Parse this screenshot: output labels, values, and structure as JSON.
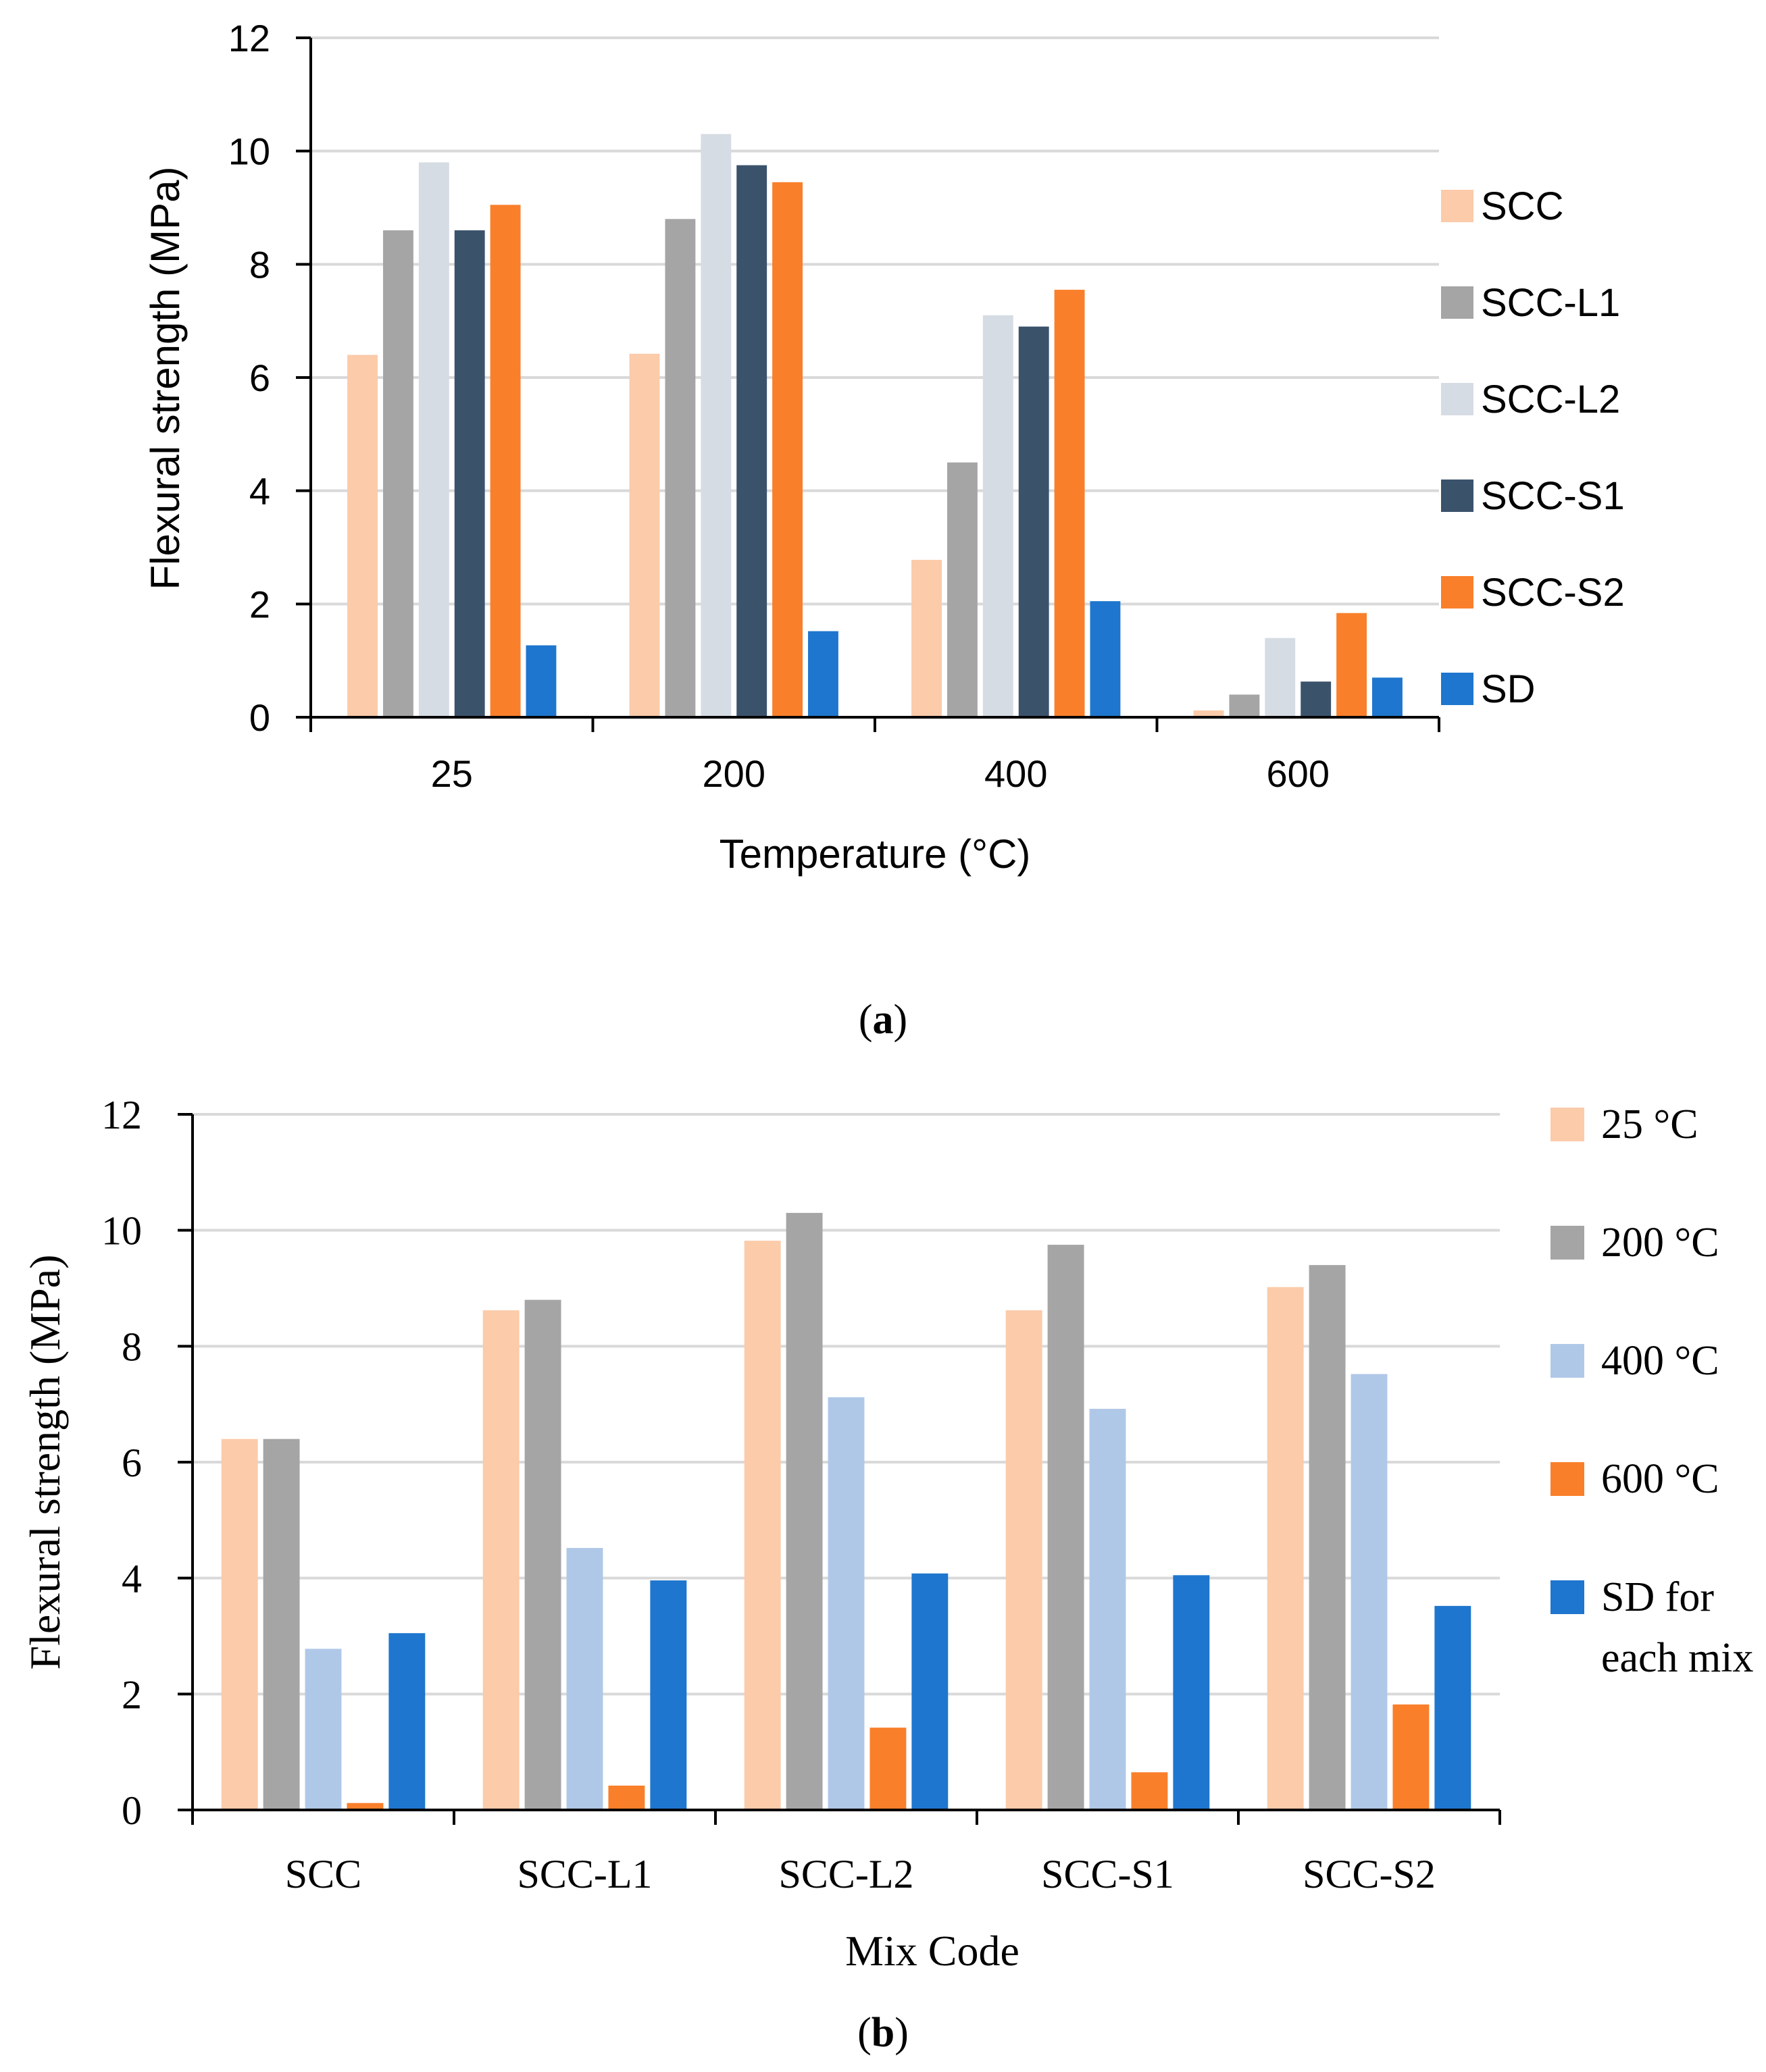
{
  "chart_data": [
    {
      "id": "a",
      "type": "bar",
      "caption_open": "(",
      "caption_letter": "a",
      "caption_close": ")",
      "xlabel": "Temperature (°C)",
      "ylabel": "Flexural strength (MPa)",
      "ylim": [
        0,
        12
      ],
      "yticks": [
        "0",
        "2",
        "4",
        "6",
        "8",
        "10",
        "12"
      ],
      "grid": true,
      "legend": "right",
      "categories": [
        "25",
        "200",
        "400",
        "600"
      ],
      "series": [
        {
          "name": "SCC",
          "color": "#fbcbaa",
          "values": [
            6.4,
            6.42,
            2.78,
            0.12
          ]
        },
        {
          "name": "SCC-L1",
          "color": "#a5a5a5",
          "values": [
            8.6,
            8.8,
            4.5,
            0.4
          ]
        },
        {
          "name": "SCC-L2",
          "color": "#d6dce4",
          "values": [
            9.8,
            10.3,
            7.1,
            1.4
          ]
        },
        {
          "name": "SCC-S1",
          "color": "#3b526b",
          "values": [
            8.6,
            9.75,
            6.9,
            0.63
          ]
        },
        {
          "name": "SCC-S2",
          "color": "#f97f2b",
          "values": [
            9.05,
            9.45,
            7.55,
            1.84
          ]
        },
        {
          "name": "SD",
          "color": "#1e76ce",
          "values": [
            1.27,
            1.52,
            2.05,
            0.7
          ]
        }
      ]
    },
    {
      "id": "b",
      "type": "bar",
      "caption_open": "(",
      "caption_letter": "b",
      "caption_close": ")",
      "xlabel": "Mix Code",
      "ylabel": "Flexural strength (MPa)",
      "ylim": [
        0,
        12
      ],
      "yticks": [
        "0",
        "2",
        "4",
        "6",
        "8",
        "10",
        "12"
      ],
      "grid": true,
      "legend": "right",
      "categories": [
        "SCC",
        "SCC-L1",
        "SCC-L2",
        "SCC-S1",
        "SCC-S2"
      ],
      "series": [
        {
          "name": "25 °C",
          "color": "#fbcbaa",
          "values": [
            6.4,
            8.62,
            9.82,
            8.62,
            9.02
          ]
        },
        {
          "name": "200  °C",
          "color": "#a5a5a5",
          "values": [
            6.4,
            8.8,
            10.3,
            9.75,
            9.4
          ]
        },
        {
          "name": "400 °C",
          "color": "#b0c8e8",
          "values": [
            2.78,
            4.52,
            7.12,
            6.92,
            7.52
          ]
        },
        {
          "name": "600 °C",
          "color": "#f97f2b",
          "values": [
            0.12,
            0.42,
            1.42,
            0.65,
            1.82
          ]
        },
        {
          "name": "SD for\neach mix",
          "color": "#1e76ce",
          "values": [
            3.05,
            3.96,
            4.08,
            4.05,
            3.52
          ]
        }
      ]
    }
  ]
}
